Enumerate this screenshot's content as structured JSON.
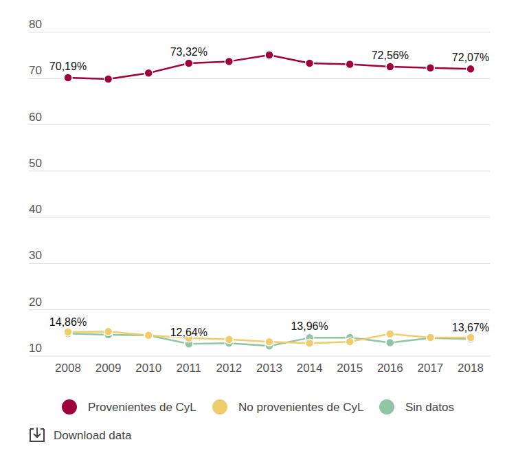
{
  "chart_data": {
    "type": "line",
    "categories": [
      "2008",
      "2009",
      "2010",
      "2011",
      "2012",
      "2013",
      "2014",
      "2015",
      "2016",
      "2017",
      "2018"
    ],
    "series": [
      {
        "name": "Provenientes de CyL",
        "color": "#a0003a",
        "marker": "circle",
        "values": [
          70.19,
          69.9,
          71.2,
          73.32,
          73.7,
          75.1,
          73.3,
          73.1,
          72.56,
          72.3,
          72.07
        ],
        "value_labels": [
          "70,19%",
          null,
          null,
          "73,32%",
          null,
          null,
          null,
          null,
          "72,56%",
          null,
          "72,07%"
        ]
      },
      {
        "name": "No provenientes de CyL",
        "color": "#f0cc6c",
        "marker": "circle",
        "values": [
          15.2,
          15.3,
          14.5,
          13.9,
          13.6,
          13.1,
          12.8,
          13.1,
          14.8,
          14.0,
          14.0
        ]
      },
      {
        "name": "Sin datos",
        "color": "#8fc5a5",
        "marker": "circle",
        "values": [
          14.86,
          14.6,
          14.5,
          12.64,
          12.8,
          12.2,
          13.96,
          14.0,
          12.9,
          13.9,
          13.67
        ],
        "value_labels": [
          "14,86%",
          null,
          null,
          "12,64%",
          null,
          null,
          "13,96%",
          null,
          null,
          null,
          "13,67%"
        ]
      }
    ],
    "ylim": [
      10,
      80
    ],
    "yticks": [
      10,
      20,
      30,
      40,
      50,
      60,
      70,
      80
    ],
    "grid": true,
    "data_labels": true,
    "legend": "bottom"
  },
  "footer": "Download data"
}
